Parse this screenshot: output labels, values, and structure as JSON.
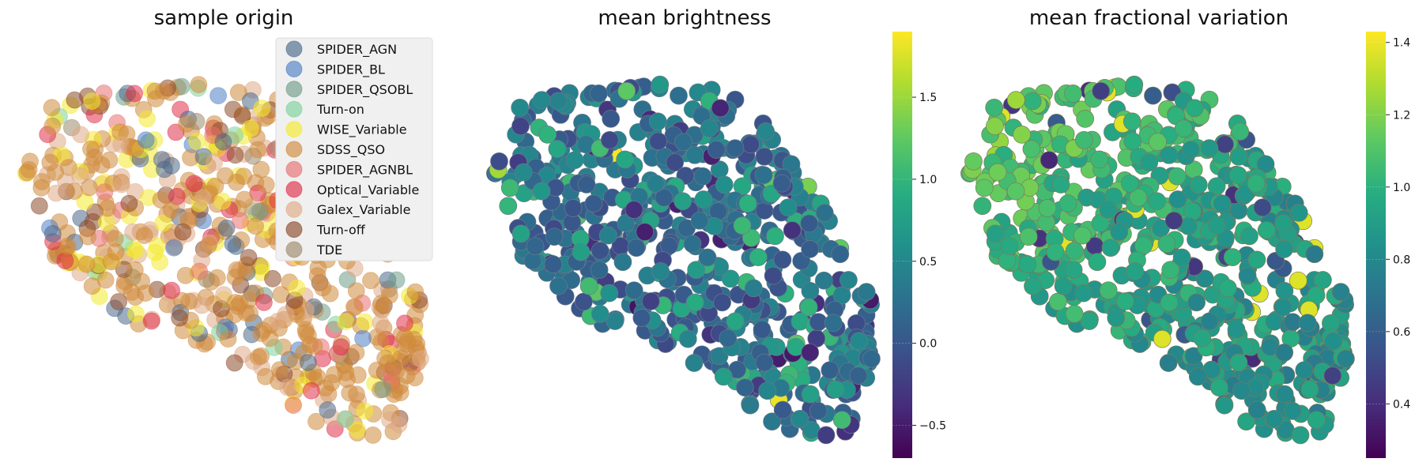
{
  "chart_data": [
    {
      "type": "scatter",
      "title": "sample origin",
      "legend_placement": "top-right",
      "grid": false,
      "axes_visible": false,
      "legend": [
        "SPIDER_AGN",
        "SPIDER_BL",
        "SPIDER_QSOBL",
        "Turn-on",
        "WISE_Variable",
        "SDSS_QSO",
        "SPIDER_AGNBL",
        "Optical_Variable",
        "Galex_Variable",
        "Turn-off",
        "TDE"
      ],
      "series": [
        {
          "name": "SPIDER_AGN",
          "color": "#4c6a8a"
        },
        {
          "name": "SPIDER_BL",
          "color": "#4f7fc4"
        },
        {
          "name": "SPIDER_QSOBL",
          "color": "#6f9c8a"
        },
        {
          "name": "Turn-on",
          "color": "#7dd19c"
        },
        {
          "name": "WISE_Variable",
          "color": "#f4ea2c"
        },
        {
          "name": "SDSS_QSO",
          "color": "#d08a3c"
        },
        {
          "name": "SPIDER_AGNBL",
          "color": "#e86f6f"
        },
        {
          "name": "Optical_Variable",
          "color": "#e0304a"
        },
        {
          "name": "Galex_Variable",
          "color": "#dfaa86"
        },
        {
          "name": "Turn-off",
          "color": "#8c4a2c"
        },
        {
          "name": "TDE",
          "color": "#9c8a6c"
        }
      ]
    },
    {
      "type": "scatter",
      "title": "mean brightness",
      "grid": false,
      "axes_visible": false,
      "colormap": "viridis",
      "colorbar": {
        "range": [
          -0.7,
          1.9
        ],
        "ticks": [
          -0.5,
          0.0,
          0.5,
          1.0,
          1.5
        ],
        "tick_labels": [
          "−0.5",
          "0.0",
          "0.5",
          "1.0",
          "1.5"
        ]
      }
    },
    {
      "type": "scatter",
      "title": "mean fractional variation",
      "grid": false,
      "axes_visible": false,
      "colormap": "viridis",
      "colorbar": {
        "range": [
          0.25,
          1.43
        ],
        "ticks": [
          0.4,
          0.6,
          0.8,
          1.0,
          1.2,
          1.4
        ],
        "tick_labels": [
          "0.4",
          "0.6",
          "0.8",
          "1.0",
          "1.2",
          "1.4"
        ]
      }
    }
  ]
}
